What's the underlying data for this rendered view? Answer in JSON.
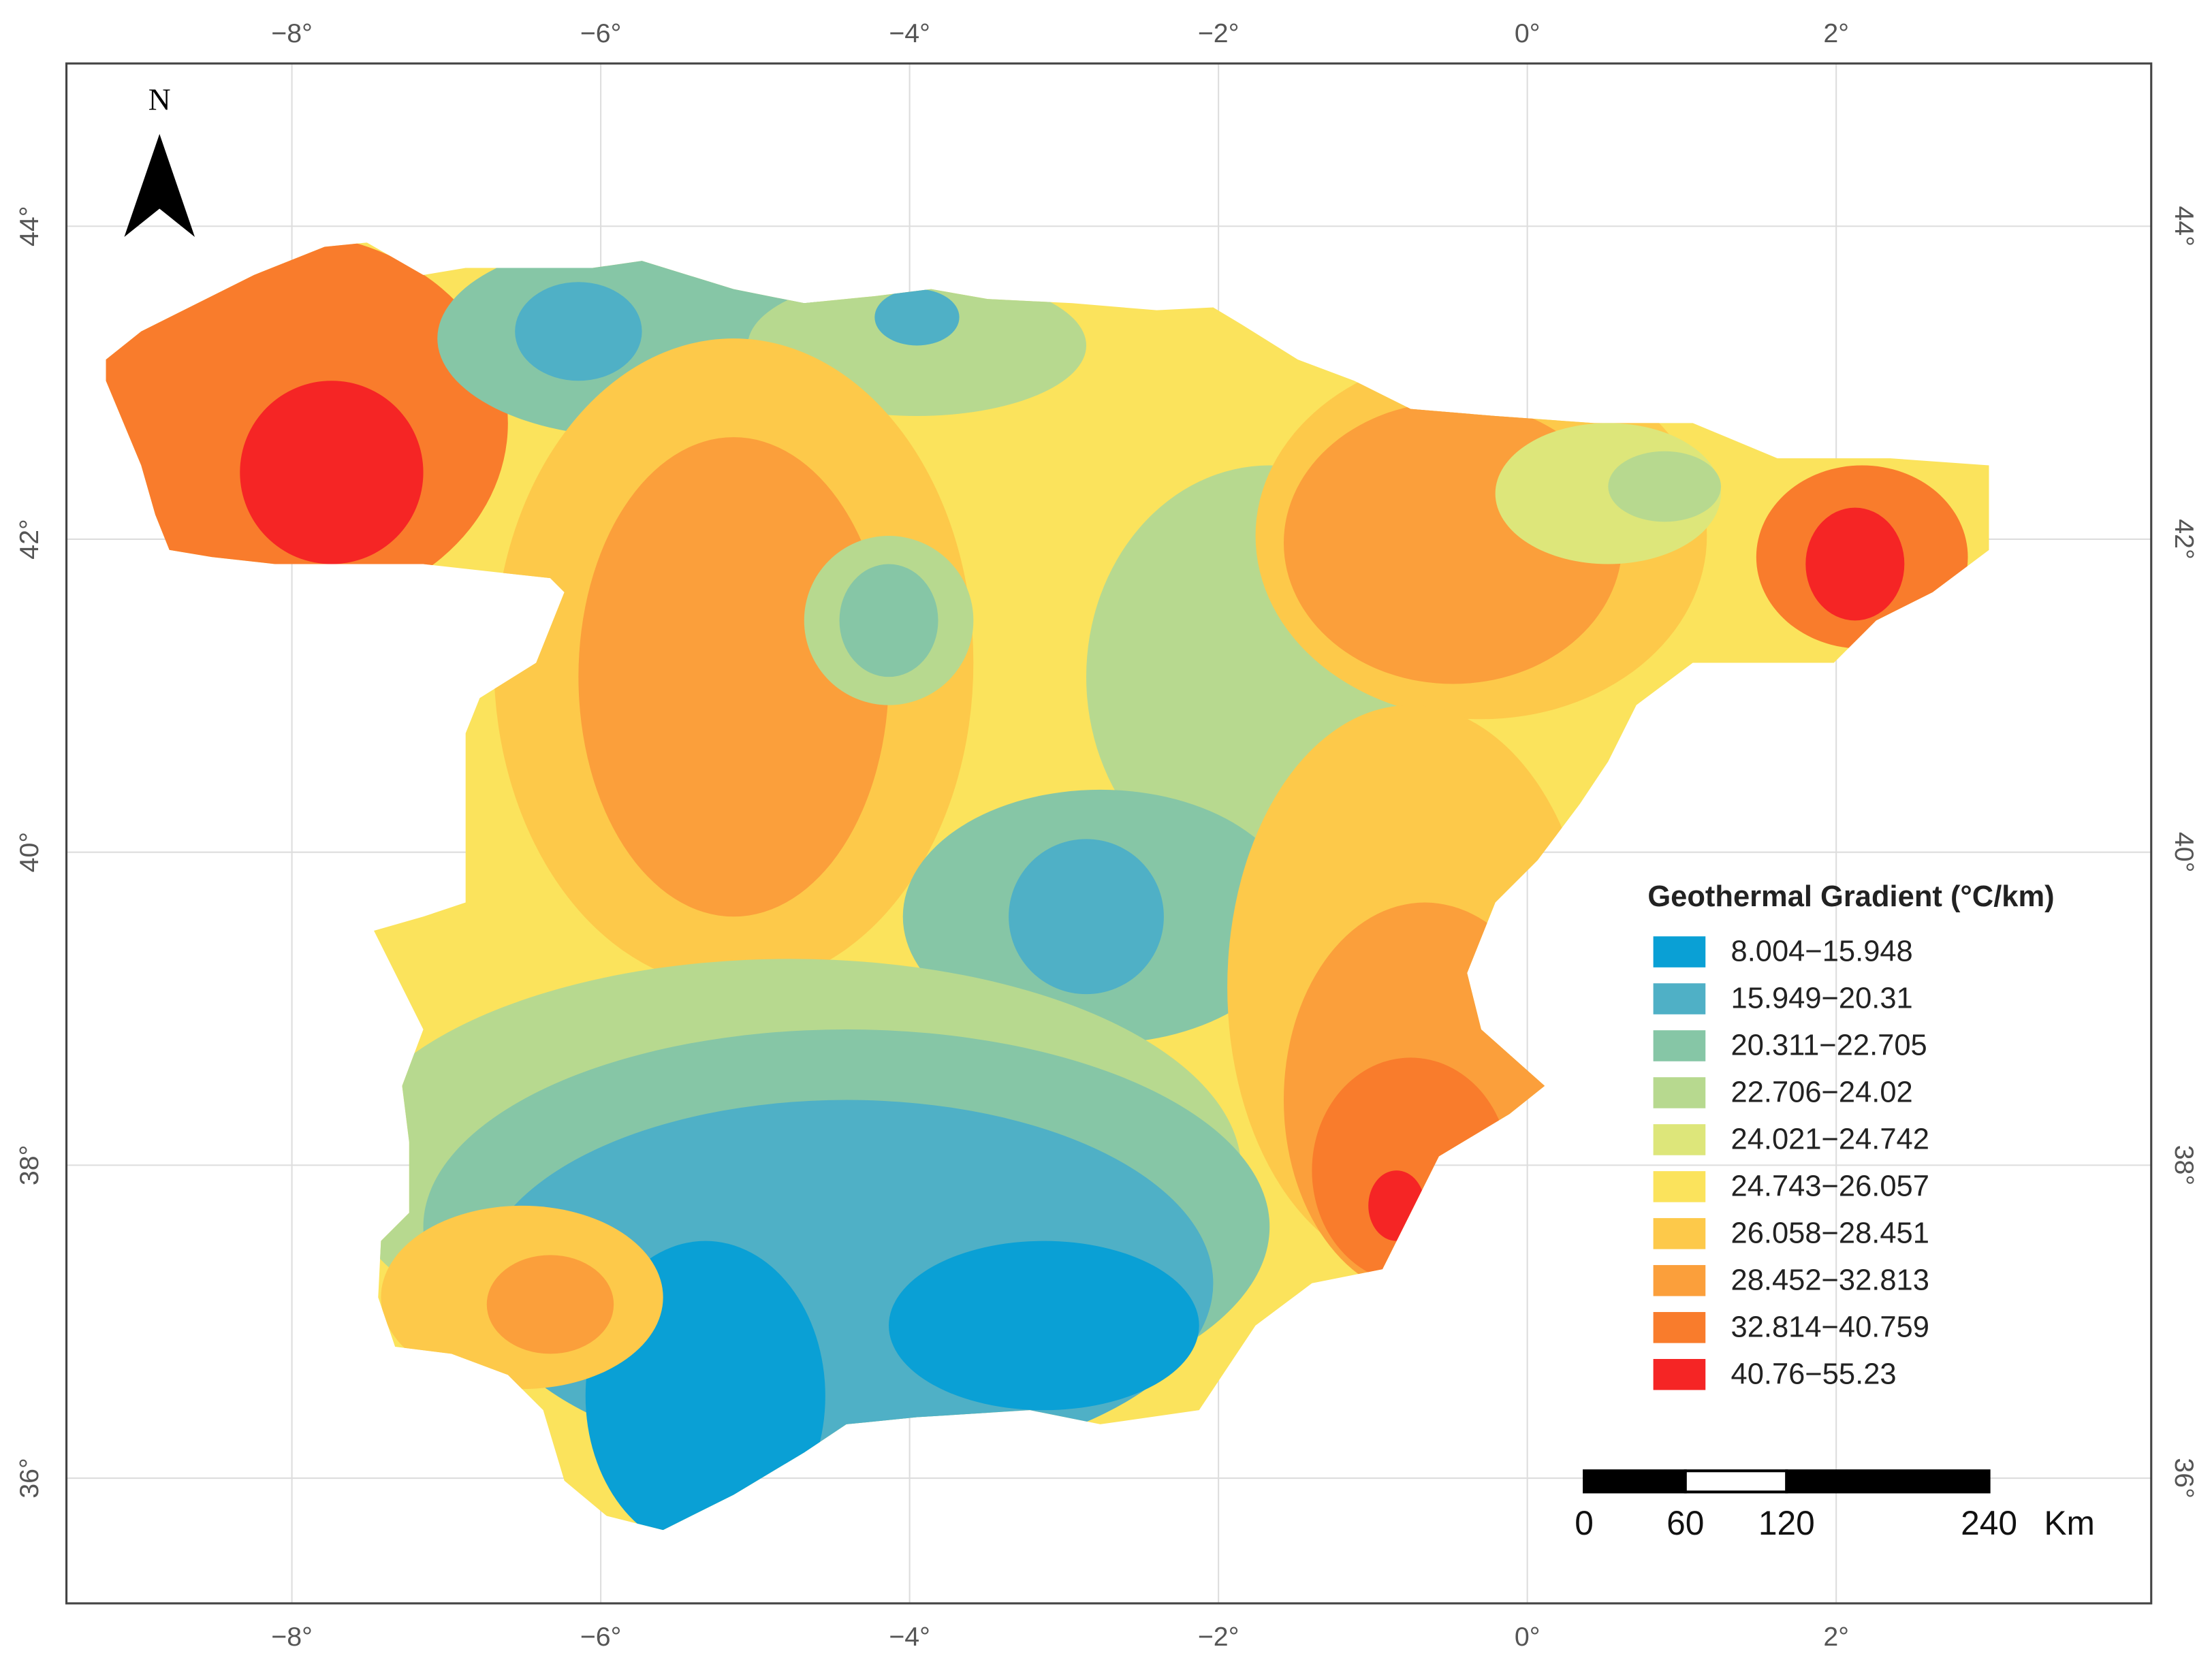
{
  "map": {
    "xlim": [
      -9.46,
      4.04
    ],
    "ylim": [
      35.2,
      45.04
    ],
    "xticks": [
      {
        "value": -8,
        "label": "−8°"
      },
      {
        "value": -6,
        "label": "−6°"
      },
      {
        "value": -4,
        "label": "−4°"
      },
      {
        "value": -2,
        "label": "−2°"
      },
      {
        "value": 0,
        "label": "0°"
      },
      {
        "value": 2,
        "label": "2°"
      }
    ],
    "yticks": [
      {
        "value": 36,
        "label": "36°"
      },
      {
        "value": 38,
        "label": "38°"
      },
      {
        "value": 40,
        "label": "40°"
      },
      {
        "value": 42,
        "label": "42°"
      },
      {
        "value": 44,
        "label": "44°"
      }
    ]
  },
  "north_arrow": {
    "label": "N"
  },
  "legend": {
    "title": "Geothermal Gradient (°C/km)",
    "classes": [
      {
        "label": "8.004−15.948",
        "color": "#0aa0d5"
      },
      {
        "label": "15.949−20.31",
        "color": "#4fb0c6"
      },
      {
        "label": "20.311−22.705",
        "color": "#86c6a6"
      },
      {
        "label": "22.706−24.02",
        "color": "#b7d98f"
      },
      {
        "label": "24.021−24.742",
        "color": "#dde67a"
      },
      {
        "label": "24.743−26.057",
        "color": "#fbe35c"
      },
      {
        "label": "26.058−28.451",
        "color": "#fdc94a"
      },
      {
        "label": "28.452−32.813",
        "color": "#fb9f3b"
      },
      {
        "label": "32.814−40.759",
        "color": "#f97c2c"
      },
      {
        "label": "40.76−55.23",
        "color": "#f52525"
      }
    ]
  },
  "scale_bar": {
    "values": [
      0,
      60,
      120,
      240
    ],
    "unit": "Km"
  }
}
